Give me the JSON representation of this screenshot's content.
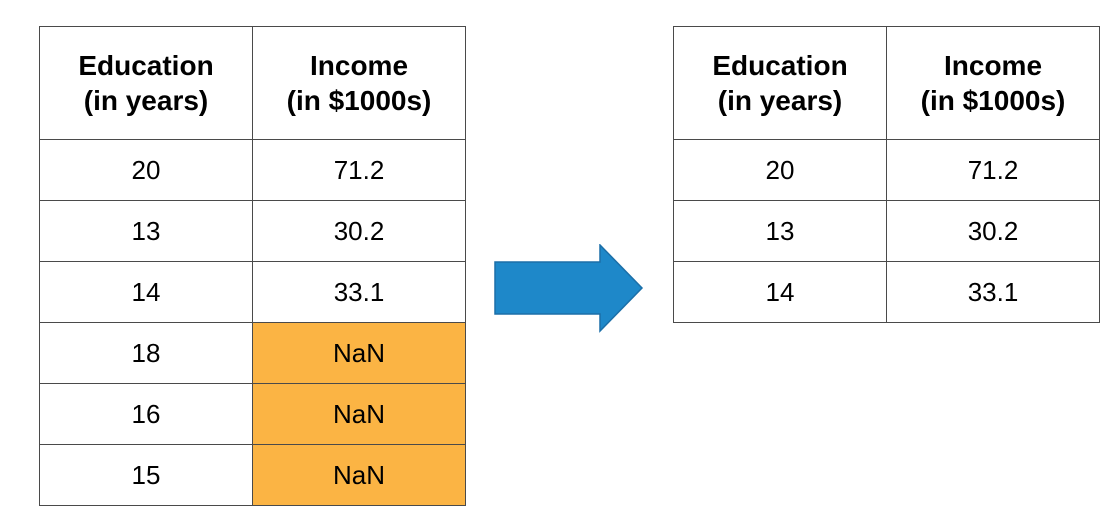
{
  "left_table": {
    "headers": [
      {
        "line1": "Education",
        "line2": "(in years)"
      },
      {
        "line1": "Income",
        "line2": "(in $1000s)"
      }
    ],
    "rows": [
      {
        "education": "20",
        "income": "71.2",
        "missing": false
      },
      {
        "education": "13",
        "income": "30.2",
        "missing": false
      },
      {
        "education": "14",
        "income": "33.1",
        "missing": false
      },
      {
        "education": "18",
        "income": "NaN",
        "missing": true
      },
      {
        "education": "16",
        "income": "NaN",
        "missing": true
      },
      {
        "education": "15",
        "income": "NaN",
        "missing": true
      }
    ]
  },
  "right_table": {
    "headers": [
      {
        "line1": "Education",
        "line2": "(in years)"
      },
      {
        "line1": "Income",
        "line2": "(in $1000s)"
      }
    ],
    "rows": [
      {
        "education": "20",
        "income": "71.2"
      },
      {
        "education": "13",
        "income": "30.2"
      },
      {
        "education": "14",
        "income": "33.1"
      }
    ]
  },
  "colors": {
    "missing_highlight": "#fbb444",
    "arrow_fill": "#1e88c9",
    "arrow_stroke": "#1b6fa8",
    "border": "#4a4a4a"
  },
  "icons": {
    "arrow": "right-arrow-icon"
  }
}
